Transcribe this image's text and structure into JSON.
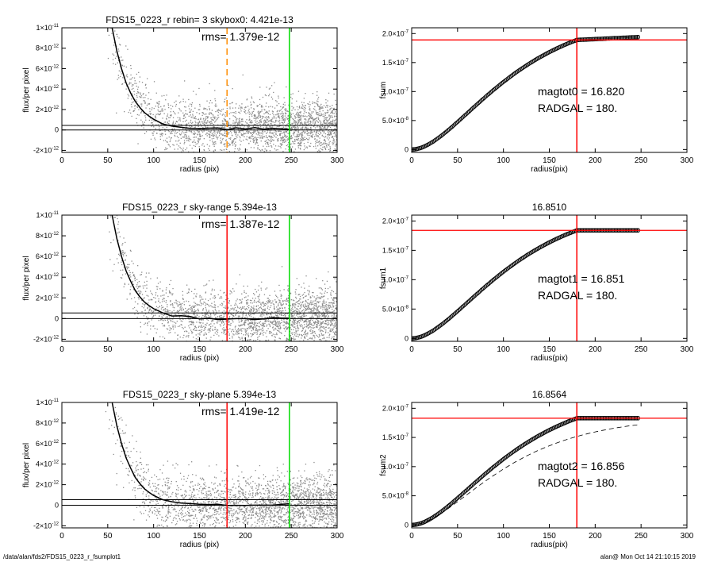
{
  "footer": {
    "path": "/data/alan/fds2/FDS15_0223_r_fsumplot1",
    "stamp": "alan@  Mon Oct 14 21:10:15 2019"
  },
  "colors": {
    "scatter": "#8c8c8c",
    "profile": "#000000",
    "rms_marker_dashed": "#ff8c00",
    "rms_marker_solid": "#ff0000",
    "sky_limit": "#00dd00",
    "growth_ref": "#ff0000",
    "growth_curve": "#000000"
  },
  "chart_data": [
    {
      "id": "profile-1",
      "type": "scatter",
      "title": "FDS15_0223_r rebin= 3    skybox0:  4.421e-13",
      "annotation": "rms= 1.379e-12",
      "xlabel": "radius (pix)",
      "ylabel": "flux/per pixel",
      "xlim": [
        0,
        300
      ],
      "ylim": [
        -2.2e-12,
        1e-11
      ],
      "xticks": [
        0,
        50,
        100,
        150,
        200,
        250,
        300
      ],
      "yticks": [
        {
          "v": 1e-11,
          "m": "1×10",
          "e": "-11"
        },
        {
          "v": 8e-12,
          "m": "8×10",
          "e": "-12"
        },
        {
          "v": 6e-12,
          "m": "6×10",
          "e": "-12"
        },
        {
          "v": 4e-12,
          "m": "4×10",
          "e": "-12"
        },
        {
          "v": 2e-12,
          "m": "2×10",
          "e": "-12"
        },
        {
          "v": 0,
          "m": "0",
          "e": ""
        },
        {
          "v": -2e-12,
          "m": "-2×10",
          "e": "-12"
        }
      ],
      "hlines": [
        0,
        4.421e-13
      ],
      "vlines": [
        {
          "x": 180,
          "style": "dashed",
          "color": "#ff8c00"
        },
        {
          "x": 248,
          "style": "solid",
          "color": "#00dd00"
        }
      ],
      "profile_x": [
        40,
        45,
        50,
        55,
        60,
        65,
        70,
        75,
        80,
        85,
        90,
        95,
        100,
        110,
        120,
        130,
        140,
        150,
        160,
        170,
        180,
        190,
        200,
        210,
        220,
        230,
        240,
        248
      ],
      "profile_y": [
        2.3e-11,
        1.7e-11,
        1.28e-11,
        9.9e-12,
        7.7e-12,
        6e-12,
        4.6e-12,
        3.6e-12,
        2.8e-12,
        2.2e-12,
        1.7e-12,
        1.35e-12,
        1.05e-12,
        6.6e-13,
        4.2e-13,
        2.8e-13,
        1.9e-13,
        1.5e-13,
        1.1e-13,
        1e-13,
        8e-14,
        1.2e-13,
        6e-14,
        1.5e-13,
        5e-14,
        1.2e-13,
        1.5e-13,
        1.5e-13
      ],
      "scatter_x_range": [
        0,
        300
      ],
      "scatter_noise": 1.379e-12,
      "scatter_offset": 4.421e-13
    },
    {
      "id": "growth-1",
      "type": "line",
      "title": "",
      "xlabel": "radius(pix)",
      "ylabel": "fsum",
      "xlim": [
        0,
        300
      ],
      "ylim": [
        -5e-09,
        2.1e-07
      ],
      "xticks": [
        0,
        50,
        100,
        150,
        200,
        250,
        300
      ],
      "yticks": [
        {
          "v": 2e-07,
          "m": "2.0×10",
          "e": "-7"
        },
        {
          "v": 1.5e-07,
          "m": "1.5×10",
          "e": "-7"
        },
        {
          "v": 1e-07,
          "m": "1.0×10",
          "e": "-7"
        },
        {
          "v": 5e-08,
          "m": "5.0×10",
          "e": "-8"
        },
        {
          "v": 0,
          "m": "0",
          "e": ""
        }
      ],
      "hline": 1.89e-07,
      "vline": 180,
      "curve_end_x": 248,
      "curve_end_y": 1.94e-07,
      "curve_ref_x": 180,
      "curve_ref_y": 1.89e-07,
      "dashed_curve": false,
      "annotations": [
        "magtot0 =  16.820",
        "RADGAL =    180."
      ]
    },
    {
      "id": "profile-2",
      "type": "scatter",
      "title": "FDS15_0223_r sky-range  5.394e-13",
      "annotation": "rms= 1.387e-12",
      "xlabel": "radius (pix)",
      "ylabel": "flux/per pixel",
      "xlim": [
        0,
        300
      ],
      "ylim": [
        -2.2e-12,
        1e-11
      ],
      "xticks": [
        0,
        50,
        100,
        150,
        200,
        250,
        300
      ],
      "yticks": [
        {
          "v": 1e-11,
          "m": "1×10",
          "e": "-11"
        },
        {
          "v": 8e-12,
          "m": "8×10",
          "e": "-12"
        },
        {
          "v": 6e-12,
          "m": "6×10",
          "e": "-12"
        },
        {
          "v": 4e-12,
          "m": "4×10",
          "e": "-12"
        },
        {
          "v": 2e-12,
          "m": "2×10",
          "e": "-12"
        },
        {
          "v": 0,
          "m": "0",
          "e": ""
        },
        {
          "v": -2e-12,
          "m": "-2×10",
          "e": "-12"
        }
      ],
      "hlines": [
        0,
        5.394e-13
      ],
      "vlines": [
        {
          "x": 180,
          "style": "solid",
          "color": "#ff0000"
        },
        {
          "x": 248,
          "style": "solid",
          "color": "#00dd00"
        }
      ],
      "profile_x": [
        40,
        45,
        50,
        55,
        60,
        65,
        70,
        75,
        80,
        85,
        90,
        95,
        100,
        110,
        120,
        130,
        140,
        150,
        160,
        170,
        180,
        190,
        200,
        210,
        220,
        230,
        240,
        248
      ],
      "profile_y": [
        2.3e-11,
        1.7e-11,
        1.28e-11,
        9.9e-12,
        7.7e-12,
        6e-12,
        4.6e-12,
        3.6e-12,
        2.7e-12,
        2.1e-12,
        1.6e-12,
        1.25e-12,
        9.5e-13,
        5.6e-13,
        3.2e-13,
        1.8e-13,
        9e-14,
        5e-14,
        1e-14,
        0,
        -3e-14,
        2e-14,
        -5e-14,
        5e-14,
        -5e-14,
        2e-14,
        5e-14,
        5e-14
      ],
      "scatter_x_range": [
        0,
        300
      ],
      "scatter_noise": 1.387e-12,
      "scatter_offset": 0
    },
    {
      "id": "growth-2",
      "type": "line",
      "title": "16.8510",
      "xlabel": "radius(pix)",
      "ylabel": "fsum1",
      "xlim": [
        0,
        300
      ],
      "ylim": [
        -5e-09,
        2.1e-07
      ],
      "xticks": [
        0,
        50,
        100,
        150,
        200,
        250,
        300
      ],
      "yticks": [
        {
          "v": 2e-07,
          "m": "2.0×10",
          "e": "-7"
        },
        {
          "v": 1.5e-07,
          "m": "1.5×10",
          "e": "-7"
        },
        {
          "v": 1e-07,
          "m": "1.0×10",
          "e": "-7"
        },
        {
          "v": 5e-08,
          "m": "5.0×10",
          "e": "-8"
        },
        {
          "v": 0,
          "m": "0",
          "e": ""
        }
      ],
      "hline": 1.84e-07,
      "vline": 180,
      "curve_end_x": 248,
      "curve_end_y": 1.84e-07,
      "curve_ref_x": 180,
      "curve_ref_y": 1.84e-07,
      "dashed_curve": false,
      "annotations": [
        "magtot1 =  16.851",
        "RADGAL =    180."
      ]
    },
    {
      "id": "profile-3",
      "type": "scatter",
      "title": "FDS15_0223_r sky-plane  5.394e-13",
      "annotation": "rms= 1.419e-12",
      "xlabel": "radius (pix)",
      "ylabel": "flux/per pixel",
      "xlim": [
        0,
        300
      ],
      "ylim": [
        -2.2e-12,
        1e-11
      ],
      "xticks": [
        0,
        50,
        100,
        150,
        200,
        250,
        300
      ],
      "yticks": [
        {
          "v": 1e-11,
          "m": "1×10",
          "e": "-11"
        },
        {
          "v": 8e-12,
          "m": "8×10",
          "e": "-12"
        },
        {
          "v": 6e-12,
          "m": "6×10",
          "e": "-12"
        },
        {
          "v": 4e-12,
          "m": "4×10",
          "e": "-12"
        },
        {
          "v": 2e-12,
          "m": "2×10",
          "e": "-12"
        },
        {
          "v": 0,
          "m": "0",
          "e": ""
        },
        {
          "v": -2e-12,
          "m": "-2×10",
          "e": "-12"
        }
      ],
      "hlines": [
        0,
        5.394e-13
      ],
      "vlines": [
        {
          "x": 180,
          "style": "solid",
          "color": "#ff0000"
        },
        {
          "x": 248,
          "style": "solid",
          "color": "#00dd00"
        }
      ],
      "profile_x": [
        40,
        45,
        50,
        55,
        60,
        65,
        70,
        75,
        80,
        85,
        90,
        95,
        100,
        110,
        120,
        130,
        140,
        150,
        160,
        170,
        180,
        190,
        200,
        210,
        220,
        230,
        240,
        248
      ],
      "profile_y": [
        2.3e-11,
        1.7e-11,
        1.28e-11,
        9.9e-12,
        7.7e-12,
        6e-12,
        4.6e-12,
        3.6e-12,
        2.7e-12,
        2.1e-12,
        1.6e-12,
        1.25e-12,
        9.5e-13,
        5.6e-13,
        3.2e-13,
        1.8e-13,
        9e-14,
        5e-14,
        1e-14,
        0,
        -3e-14,
        2e-14,
        -5e-14,
        5e-14,
        -5e-14,
        2e-14,
        5e-14,
        5e-14
      ],
      "scatter_x_range": [
        0,
        300
      ],
      "scatter_noise": 1.419e-12,
      "scatter_offset": 0
    },
    {
      "id": "growth-3",
      "type": "line",
      "title": "16.8564",
      "xlabel": "radius(pix)",
      "ylabel": "fsum2",
      "xlim": [
        0,
        300
      ],
      "ylim": [
        -5e-09,
        2.1e-07
      ],
      "xticks": [
        0,
        50,
        100,
        150,
        200,
        250,
        300
      ],
      "yticks": [
        {
          "v": 2e-07,
          "m": "2.0×10",
          "e": "-7"
        },
        {
          "v": 1.5e-07,
          "m": "1.5×10",
          "e": "-7"
        },
        {
          "v": 1e-07,
          "m": "1.0×10",
          "e": "-7"
        },
        {
          "v": 5e-08,
          "m": "5.0×10",
          "e": "-8"
        },
        {
          "v": 0,
          "m": "0",
          "e": ""
        }
      ],
      "hline": 1.83e-07,
      "vline": 180,
      "curve_end_x": 248,
      "curve_end_y": 1.83e-07,
      "curve_ref_x": 180,
      "curve_ref_y": 1.83e-07,
      "dashed_curve": true,
      "dashed_end_y": 1.72e-07,
      "annotations": [
        "magtot2 =  16.856",
        "RADGAL =    180."
      ]
    }
  ]
}
